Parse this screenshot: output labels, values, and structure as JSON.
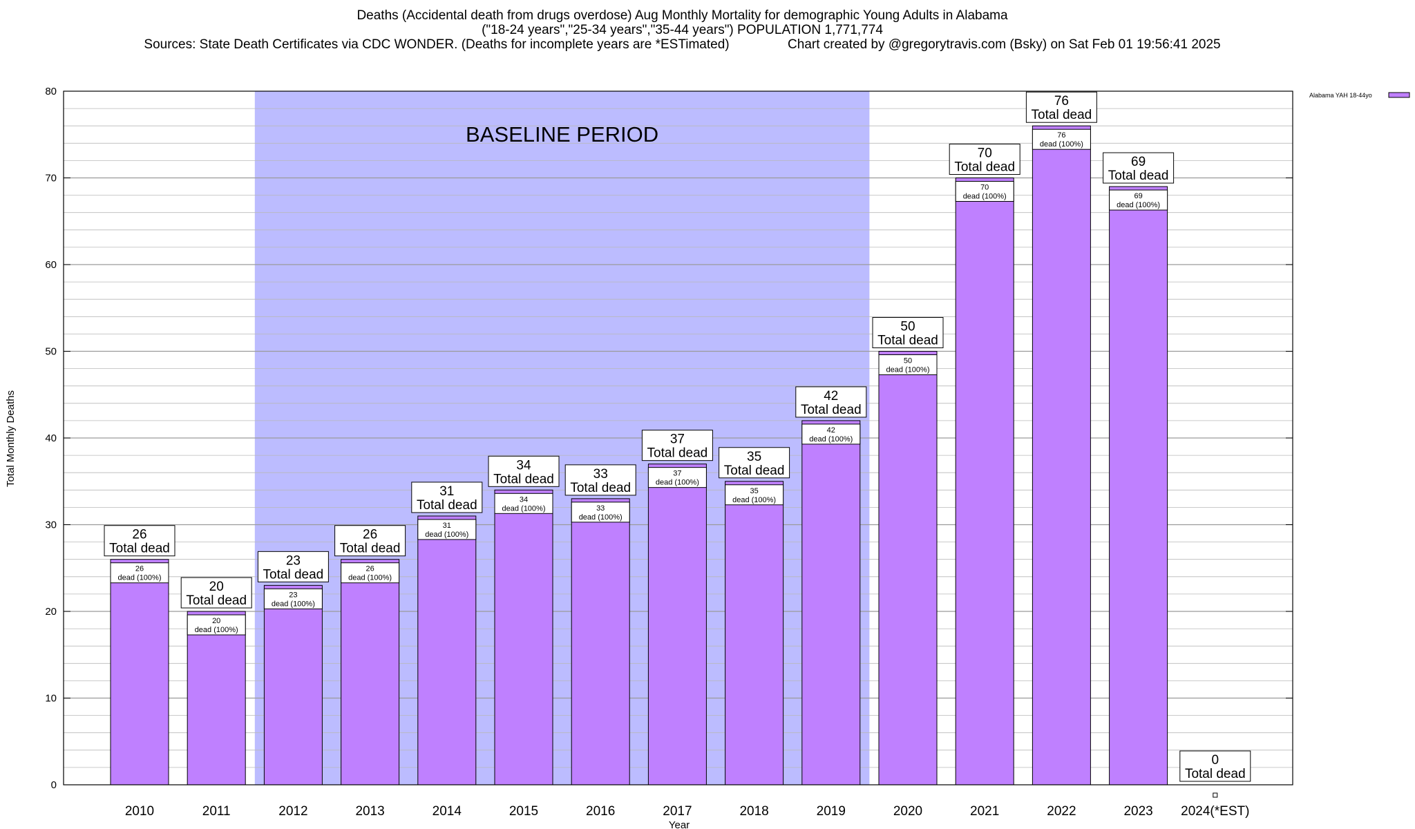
{
  "chart_data": {
    "type": "bar",
    "title_lines": [
      "Deaths (Accidental death from drugs overdose) Aug Monthly Mortality for demographic Young Adults in Alabama",
      "(\"18-24 years\",\"25-34 years\",\"35-44 years\") POPULATION 1,771,774",
      "Sources: State Death Certificates via CDC WONDER. (Deaths for incomplete years are *ESTimated)                Chart created by @gregorytravis.com (Bsky) on Sat Feb 01 19:56:41 2025"
    ],
    "xlabel": "Year",
    "ylabel": "Total Monthly Deaths",
    "ylim": [
      0,
      80
    ],
    "y_ticks": [
      "0",
      "10",
      "20",
      "30",
      "40",
      "50",
      "60",
      "70",
      "80"
    ],
    "categories": [
      "2010",
      "2011",
      "2012",
      "2013",
      "2014",
      "2015",
      "2016",
      "2017",
      "2018",
      "2019",
      "2020",
      "2021",
      "2022",
      "2023",
      "2024(*EST)"
    ],
    "series": [
      {
        "name": "Alabama YAH 18-44yo",
        "color": "#bf80ff",
        "values": [
          26,
          20,
          23,
          26,
          31,
          34,
          33,
          37,
          35,
          42,
          50,
          70,
          76,
          69,
          0
        ]
      }
    ],
    "total_labels": [
      "26",
      "20",
      "23",
      "26",
      "31",
      "34",
      "33",
      "37",
      "35",
      "42",
      "50",
      "70",
      "76",
      "69",
      "0"
    ],
    "total_suffix": "Total dead",
    "inner_labels": [
      "26",
      "20",
      "23",
      "26",
      "31",
      "34",
      "33",
      "37",
      "35",
      "42",
      "50",
      "70",
      "76",
      "69",
      ""
    ],
    "inner_suffix": "dead (100%)",
    "baseline": {
      "label": "BASELINE PERIOD",
      "from": "2012",
      "to": "2019",
      "color": "#bcbcff"
    },
    "legend": {
      "position": "top-right"
    },
    "grid": true,
    "colors": {
      "bar": "#bf80ff",
      "baseline": "#bcbcff",
      "grid": "#a0a0a0"
    }
  }
}
